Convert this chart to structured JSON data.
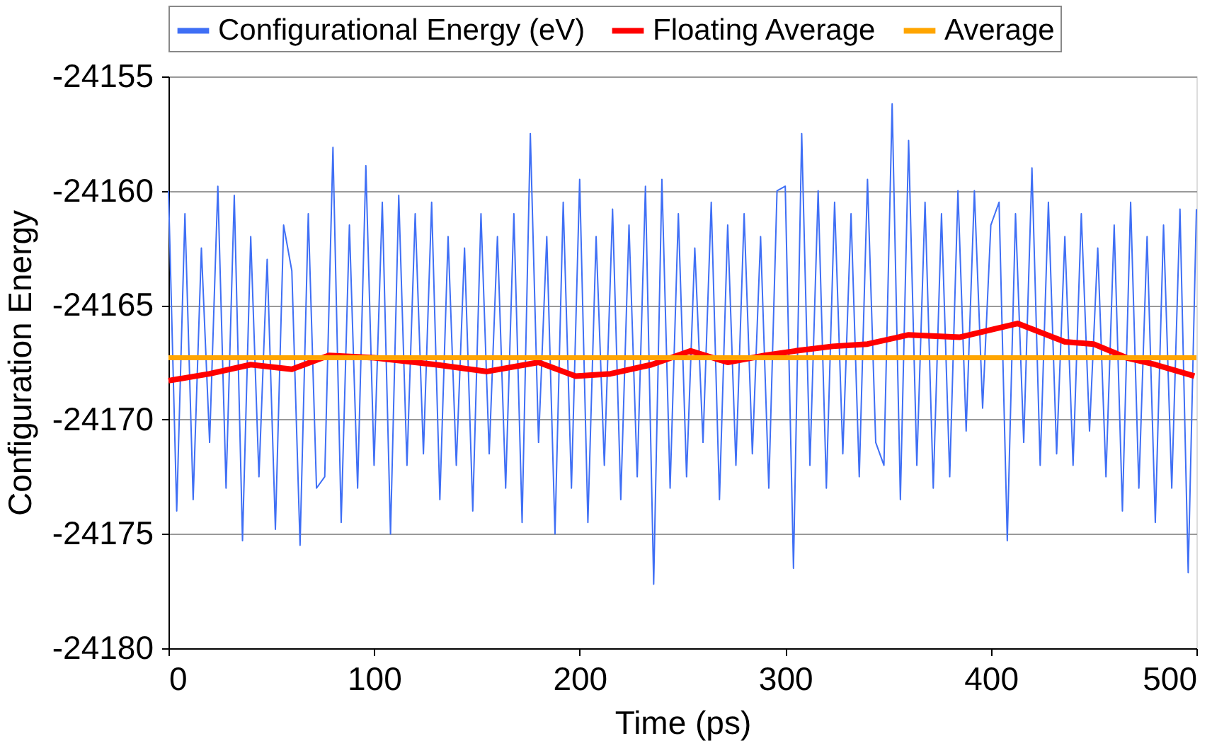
{
  "chart_data": {
    "type": "line",
    "xlabel": "Time (ps)",
    "ylabel": "Configuration Energy",
    "xlim": [
      0,
      500
    ],
    "xticks": [
      0,
      100,
      200,
      300,
      400,
      500
    ],
    "ylim": [
      -24180,
      -24155
    ],
    "yticks": [
      -24180,
      -24175,
      -24170,
      -24165,
      -24160,
      -24155
    ],
    "grid": "y",
    "legend": "top",
    "marker": "none",
    "line_style": "solid",
    "series": [
      {
        "name": "Configurational Energy (eV)",
        "color": "#3f6ff5",
        "x": [
          0,
          4,
          8,
          12,
          16,
          20,
          24,
          28,
          32,
          36,
          40,
          44,
          48,
          52,
          56,
          60,
          64,
          68,
          72,
          76,
          80,
          84,
          88,
          92,
          96,
          100,
          104,
          108,
          112,
          116,
          120,
          124,
          128,
          132,
          136,
          140,
          144,
          148,
          152,
          156,
          160,
          164,
          168,
          172,
          176,
          180,
          184,
          188,
          192,
          196,
          200,
          204,
          208,
          212,
          216,
          220,
          224,
          228,
          232,
          236,
          240,
          244,
          248,
          252,
          256,
          260,
          264,
          268,
          272,
          276,
          280,
          284,
          288,
          292,
          296,
          300,
          304,
          308,
          312,
          316,
          320,
          324,
          328,
          332,
          336,
          340,
          344,
          348,
          352,
          356,
          360,
          364,
          368,
          372,
          376,
          380,
          384,
          388,
          392,
          396,
          400,
          404,
          408,
          412,
          416,
          420,
          424,
          428,
          432,
          436,
          440,
          444,
          448,
          452,
          456,
          460,
          464,
          468,
          472,
          476,
          480,
          484,
          488,
          492,
          496,
          500
        ],
        "values": [
          -24160.0,
          -24174.0,
          -24161.0,
          -24173.5,
          -24162.5,
          -24171.0,
          -24159.8,
          -24173.0,
          -24160.2,
          -24175.3,
          -24162.0,
          -24172.5,
          -24163.0,
          -24174.8,
          -24161.5,
          -24163.5,
          -24175.5,
          -24161.0,
          -24173.0,
          -24172.5,
          -24158.1,
          -24174.5,
          -24161.5,
          -24173.0,
          -24158.9,
          -24172.0,
          -24160.5,
          -24175.0,
          -24160.2,
          -24172.0,
          -24161.0,
          -24171.5,
          -24160.5,
          -24173.5,
          -24162.0,
          -24172.0,
          -24162.5,
          -24174.0,
          -24161.0,
          -24171.5,
          -24162.0,
          -24173.0,
          -24161.0,
          -24174.5,
          -24157.5,
          -24171.0,
          -24162.0,
          -24175.0,
          -24160.5,
          -24173.0,
          -24159.5,
          -24174.5,
          -24162.0,
          -24172.0,
          -24160.8,
          -24173.5,
          -24161.5,
          -24172.5,
          -24159.8,
          -24177.2,
          -24159.5,
          -24173.0,
          -24161.0,
          -24172.5,
          -24162.5,
          -24171.0,
          -24160.5,
          -24173.5,
          -24161.5,
          -24172.0,
          -24161.0,
          -24171.5,
          -24162.0,
          -24173.0,
          -24160.0,
          -24159.8,
          -24176.5,
          -24157.5,
          -24172.0,
          -24160.0,
          -24173.0,
          -24160.5,
          -24171.5,
          -24161.0,
          -24172.5,
          -24159.5,
          -24171.0,
          -24172.0,
          -24156.2,
          -24173.5,
          -24157.8,
          -24172.0,
          -24160.5,
          -24173.0,
          -24161.0,
          -24172.5,
          -24160.0,
          -24170.5,
          -24160.0,
          -24169.5,
          -24161.5,
          -24160.5,
          -24175.3,
          -24161.0,
          -24171.0,
          -24159.0,
          -24172.0,
          -24160.5,
          -24171.5,
          -24162.0,
          -24172.0,
          -24161.0,
          -24170.5,
          -24162.5,
          -24172.5,
          -24161.5,
          -24174.0,
          -24160.5,
          -24173.0,
          -24162.0,
          -24174.5,
          -24161.5,
          -24173.0,
          -24160.8,
          -24176.7,
          -24160.8
        ]
      },
      {
        "name": "Floating Average",
        "color": "#ff0000",
        "x": [
          0,
          20,
          40,
          60,
          78,
          100,
          130,
          155,
          180,
          198,
          215,
          235,
          254,
          272,
          290,
          305,
          323,
          340,
          360,
          385,
          413,
          436,
          450,
          466,
          480,
          499
        ],
        "values": [
          -24168.3,
          -24168.0,
          -24167.6,
          -24167.8,
          -24167.2,
          -24167.3,
          -24167.6,
          -24167.9,
          -24167.5,
          -24168.1,
          -24168.0,
          -24167.6,
          -24167.0,
          -24167.5,
          -24167.2,
          -24167.0,
          -24166.8,
          -24166.7,
          -24166.3,
          -24166.4,
          -24165.8,
          -24166.6,
          -24166.7,
          -24167.3,
          -24167.6,
          -24168.1
        ]
      },
      {
        "name": "Average",
        "color": "#ffa500",
        "x": [
          0,
          500
        ],
        "values": [
          -24167.3,
          -24167.3
        ]
      }
    ]
  }
}
